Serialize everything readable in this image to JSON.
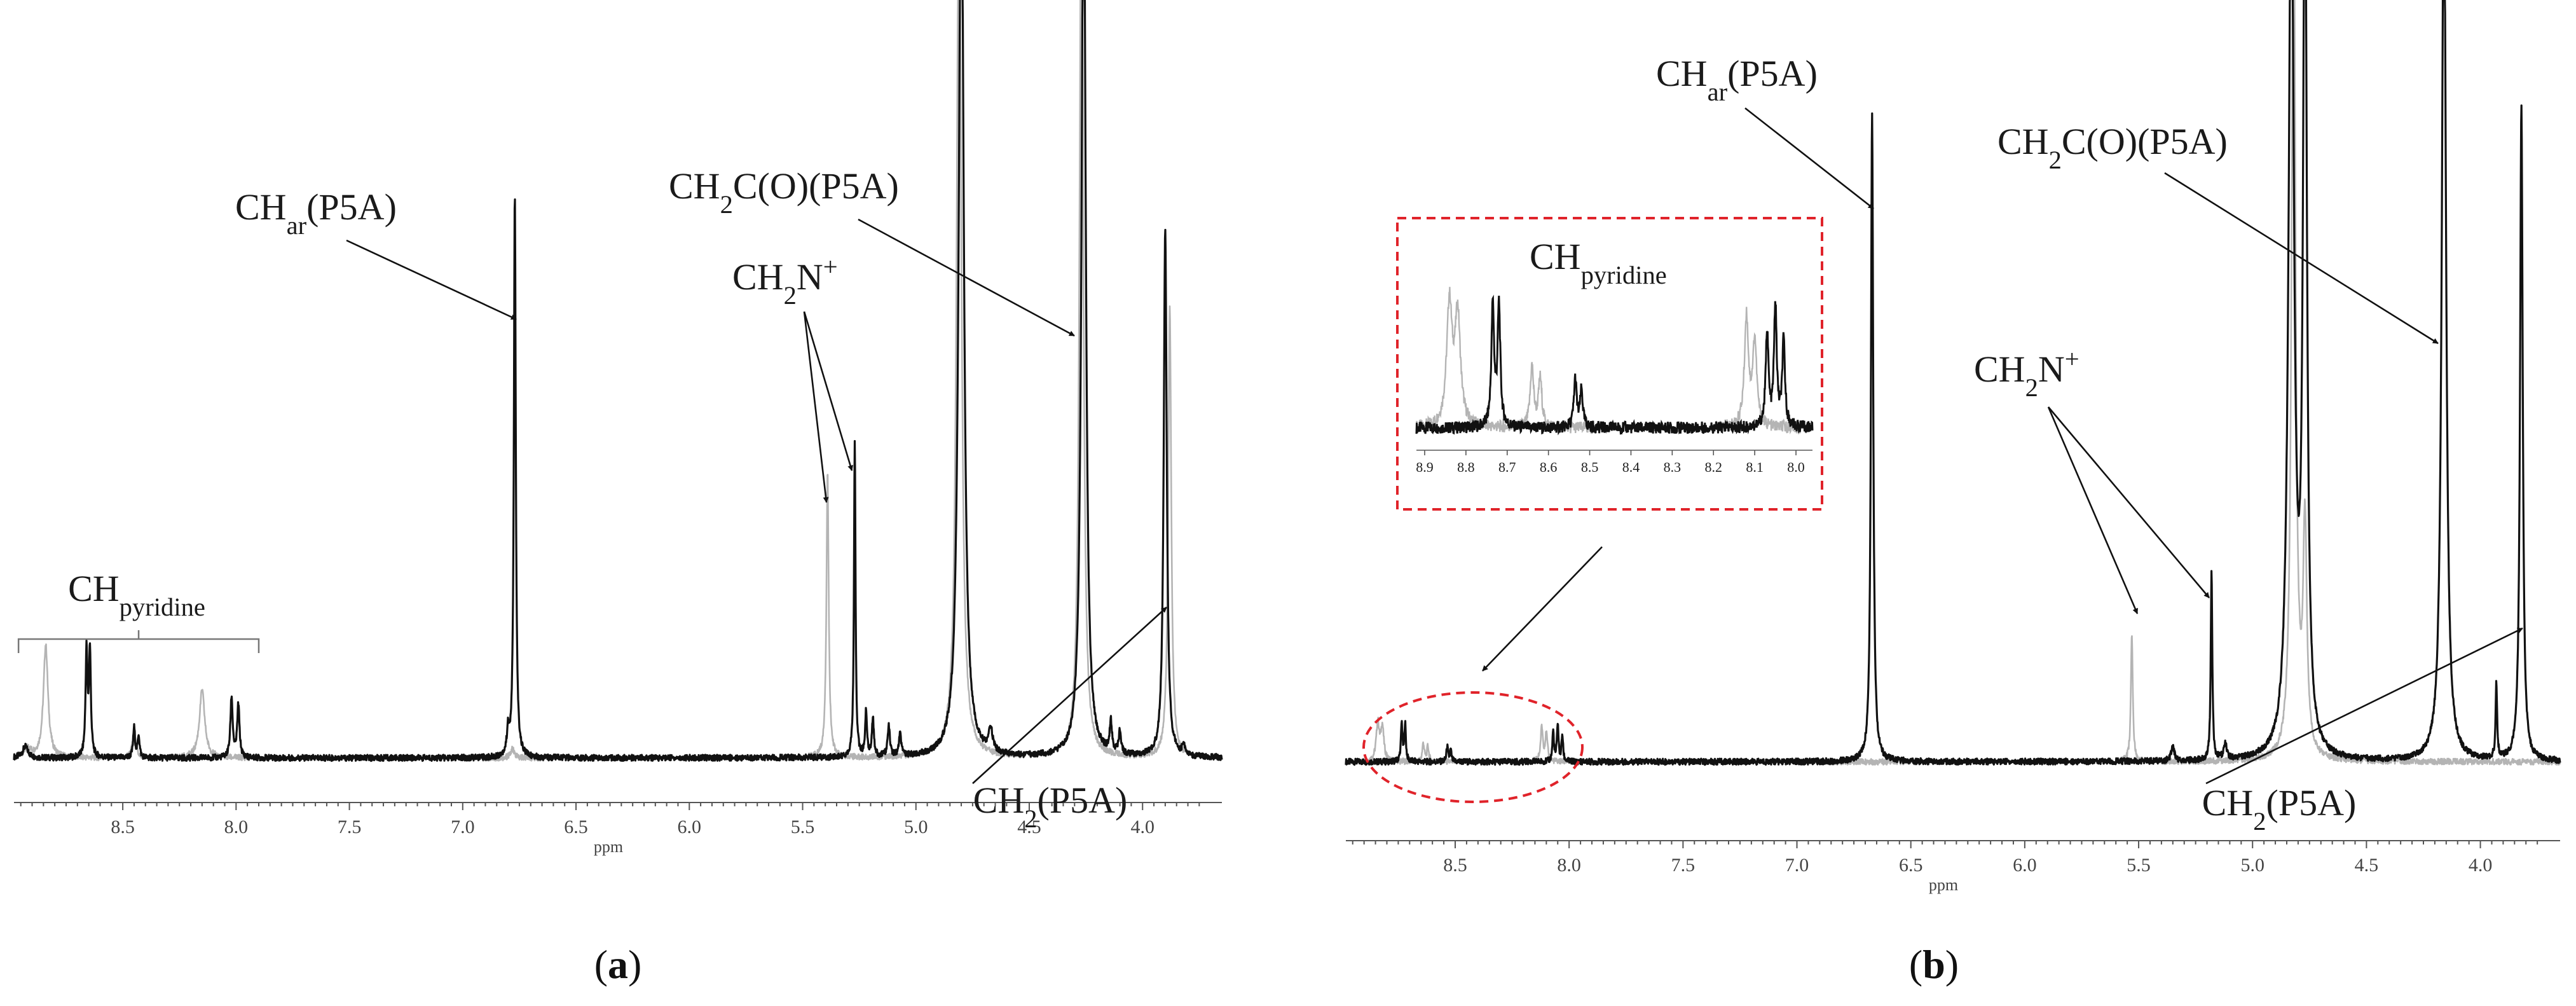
{
  "chart_data": [
    {
      "id": "a",
      "type": "line",
      "caption": "a",
      "xlabel": "ppm",
      "xlim": [
        8.98,
        3.65
      ],
      "ylim": [
        -0.03,
        1.0
      ],
      "xticks": [
        8.5,
        8.0,
        7.5,
        7.0,
        6.5,
        6.0,
        5.5,
        5.0,
        4.5,
        4.0
      ],
      "xtick_labels": [
        "8.5",
        "8.0",
        "7.5",
        "7.0",
        "6.5",
        "6.0",
        "5.5",
        "5.0",
        "4.5",
        "4.0"
      ],
      "grid": false,
      "legend": "none",
      "series": [
        {
          "color": "#b4b4b4",
          "peaks": [
            {
              "x": 8.92,
              "h": 0.012,
              "w": 0.02
            },
            {
              "x": 8.84,
              "h": 0.15,
              "w": 0.012
            },
            {
              "x": 8.45,
              "h": 0.03,
              "w": 0.01
            },
            {
              "x": 8.15,
              "h": 0.09,
              "w": 0.014
            },
            {
              "x": 6.78,
              "h": 0.012,
              "w": 0.01
            },
            {
              "x": 5.39,
              "h": 0.38,
              "w": 0.006
            },
            {
              "x": 4.81,
              "h": 1.2,
              "w": 0.012
            },
            {
              "x": 4.27,
              "h": 1.2,
              "w": 0.01
            },
            {
              "x": 3.88,
              "h": 0.6,
              "w": 0.008
            }
          ]
        },
        {
          "color": "#111111",
          "peaks": [
            {
              "x": 8.93,
              "h": 0.015,
              "w": 0.015
            },
            {
              "x": 8.66,
              "h": 0.14,
              "w": 0.005
            },
            {
              "x": 8.645,
              "h": 0.14,
              "w": 0.005
            },
            {
              "x": 8.45,
              "h": 0.04,
              "w": 0.005
            },
            {
              "x": 8.43,
              "h": 0.03,
              "w": 0.005
            },
            {
              "x": 8.02,
              "h": 0.08,
              "w": 0.006
            },
            {
              "x": 7.99,
              "h": 0.07,
              "w": 0.006
            },
            {
              "x": 6.8,
              "h": 0.03,
              "w": 0.006
            },
            {
              "x": 6.77,
              "h": 0.75,
              "w": 0.005
            },
            {
              "x": 5.27,
              "h": 0.42,
              "w": 0.004
            },
            {
              "x": 5.22,
              "h": 0.06,
              "w": 0.005
            },
            {
              "x": 5.19,
              "h": 0.05,
              "w": 0.005
            },
            {
              "x": 5.12,
              "h": 0.04,
              "w": 0.006
            },
            {
              "x": 5.07,
              "h": 0.03,
              "w": 0.006
            },
            {
              "x": 4.8,
              "h": 1.25,
              "w": 0.013
            },
            {
              "x": 4.67,
              "h": 0.03,
              "w": 0.01
            },
            {
              "x": 4.26,
              "h": 1.25,
              "w": 0.011
            },
            {
              "x": 4.14,
              "h": 0.04,
              "w": 0.006
            },
            {
              "x": 4.1,
              "h": 0.03,
              "w": 0.006
            },
            {
              "x": 3.9,
              "h": 0.7,
              "w": 0.008
            },
            {
              "x": 3.82,
              "h": 0.015,
              "w": 0.006
            }
          ]
        }
      ],
      "annotations": [
        {
          "text": "CHar(P5A)",
          "parts": [
            {
              "t": "CH"
            },
            {
              "t": "ar",
              "sub": true
            },
            {
              "t": "(P5A)"
            }
          ]
        },
        {
          "text": "CH2N+",
          "parts": [
            {
              "t": "CH"
            },
            {
              "t": "2",
              "sub": true
            },
            {
              "t": "N"
            },
            {
              "t": "+",
              "sup": true
            }
          ]
        },
        {
          "text": "CH2C(O)(P5A)",
          "parts": [
            {
              "t": "CH"
            },
            {
              "t": "2",
              "sub": true
            },
            {
              "t": "C(O)(P5A)"
            }
          ]
        },
        {
          "text": "CH2(P5A)",
          "parts": [
            {
              "t": "CH"
            },
            {
              "t": "2",
              "sub": true
            },
            {
              "t": "(P5A)"
            }
          ]
        },
        {
          "text": "CHpyridine",
          "parts": [
            {
              "t": "CH"
            },
            {
              "t": "pyridine",
              "sub": true
            }
          ]
        }
      ]
    },
    {
      "id": "b",
      "type": "line",
      "caption": "b",
      "xlabel": "ppm",
      "xlim": [
        8.98,
        3.65
      ],
      "ylim": [
        -0.03,
        1.0
      ],
      "xticks": [
        8.5,
        8.0,
        7.5,
        7.0,
        6.5,
        6.0,
        5.5,
        5.0,
        4.5,
        4.0
      ],
      "xtick_labels": [
        "8.5",
        "8.0",
        "7.5",
        "7.0",
        "6.5",
        "6.0",
        "5.5",
        "5.0",
        "4.5",
        "4.0"
      ],
      "grid": false,
      "legend": "none",
      "series": [
        {
          "color": "#b4b4b4",
          "peaks": [
            {
              "x": 8.84,
              "h": 0.05,
              "w": 0.008
            },
            {
              "x": 8.82,
              "h": 0.045,
              "w": 0.008
            },
            {
              "x": 8.64,
              "h": 0.025,
              "w": 0.005
            },
            {
              "x": 8.62,
              "h": 0.02,
              "w": 0.005
            },
            {
              "x": 8.12,
              "h": 0.045,
              "w": 0.006
            },
            {
              "x": 8.1,
              "h": 0.035,
              "w": 0.006
            },
            {
              "x": 5.53,
              "h": 0.17,
              "w": 0.005
            },
            {
              "x": 4.82,
              "h": 1.2,
              "w": 0.01
            },
            {
              "x": 4.77,
              "h": 0.3,
              "w": 0.01
            }
          ]
        },
        {
          "color": "#111111",
          "peaks": [
            {
              "x": 8.735,
              "h": 0.05,
              "w": 0.004
            },
            {
              "x": 8.72,
              "h": 0.05,
              "w": 0.004
            },
            {
              "x": 8.535,
              "h": 0.02,
              "w": 0.004
            },
            {
              "x": 8.52,
              "h": 0.015,
              "w": 0.004
            },
            {
              "x": 8.07,
              "h": 0.04,
              "w": 0.004
            },
            {
              "x": 8.05,
              "h": 0.05,
              "w": 0.004
            },
            {
              "x": 8.03,
              "h": 0.035,
              "w": 0.004
            },
            {
              "x": 6.67,
              "h": 0.86,
              "w": 0.006
            },
            {
              "x": 5.35,
              "h": 0.02,
              "w": 0.008
            },
            {
              "x": 5.18,
              "h": 0.25,
              "w": 0.004
            },
            {
              "x": 5.12,
              "h": 0.02,
              "w": 0.008
            },
            {
              "x": 4.83,
              "h": 1.2,
              "w": 0.014
            },
            {
              "x": 4.77,
              "h": 1.2,
              "w": 0.01
            },
            {
              "x": 4.16,
              "h": 1.2,
              "w": 0.011
            },
            {
              "x": 3.93,
              "h": 0.1,
              "w": 0.004
            },
            {
              "x": 3.82,
              "h": 0.87,
              "w": 0.007
            }
          ]
        }
      ],
      "inset": {
        "border_color": "#e0232a",
        "xlim": [
          8.92,
          7.96
        ],
        "xticks": [
          8.9,
          8.8,
          8.7,
          8.6,
          8.5,
          8.4,
          8.3,
          8.2,
          8.1,
          8.0
        ],
        "xtick_labels": [
          "8.9",
          "8.8",
          "8.7",
          "8.6",
          "8.5",
          "8.4",
          "8.3",
          "8.2",
          "8.1",
          "8.0"
        ],
        "label": {
          "text": "CHpyridine",
          "parts": [
            {
              "t": "CH"
            },
            {
              "t": "pyridine",
              "sub": true
            }
          ]
        }
      },
      "annotations": [
        {
          "text": "CHar(P5A)",
          "parts": [
            {
              "t": "CH"
            },
            {
              "t": "ar",
              "sub": true
            },
            {
              "t": "(P5A)"
            }
          ]
        },
        {
          "text": "CH2C(O)(P5A)",
          "parts": [
            {
              "t": "CH"
            },
            {
              "t": "2",
              "sub": true
            },
            {
              "t": "C(O)(P5A)"
            }
          ]
        },
        {
          "text": "CH2N+",
          "parts": [
            {
              "t": "CH"
            },
            {
              "t": "2",
              "sub": true
            },
            {
              "t": "N"
            },
            {
              "t": "+",
              "sup": true
            }
          ]
        },
        {
          "text": "CH2(P5A)",
          "parts": [
            {
              "t": "CH"
            },
            {
              "t": "2",
              "sub": true
            },
            {
              "t": "(P5A)"
            }
          ]
        }
      ]
    }
  ]
}
